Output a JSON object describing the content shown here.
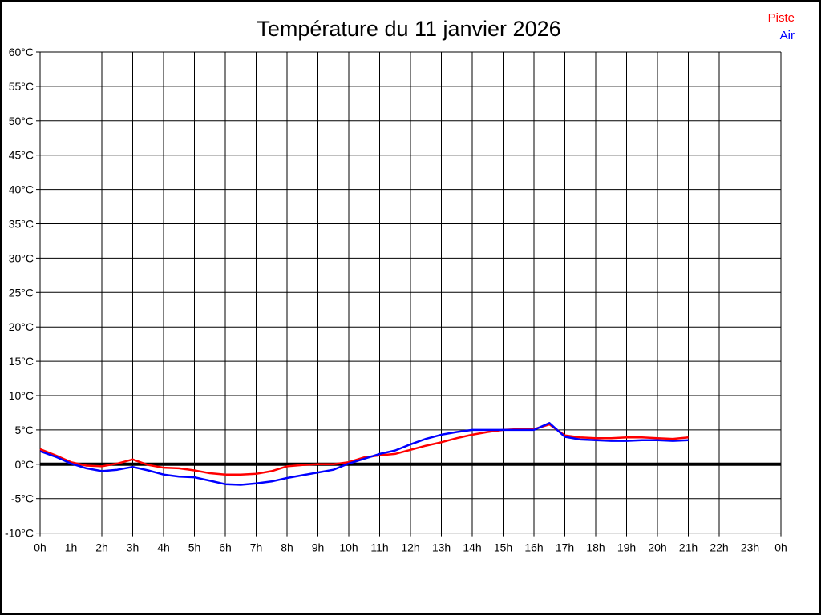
{
  "page": {
    "background": "#ffffff",
    "border_color": "#000000"
  },
  "title": "Température du 11 janvier 2026",
  "legend": {
    "position": "top-right",
    "items": [
      {
        "label": "Piste",
        "color": "#ff0000"
      },
      {
        "label": "Air",
        "color": "#0000ff"
      }
    ]
  },
  "chart_data": {
    "type": "line",
    "title": "Température du 11 janvier 2026",
    "xlabel": "",
    "ylabel": "",
    "xlim": [
      0,
      24
    ],
    "ylim": [
      -10,
      60
    ],
    "y_step": 5,
    "x_step": 1,
    "grid": true,
    "grid_color": "#000000",
    "axis_color": "#000000",
    "zero_line": {
      "value": 0,
      "color": "#000000",
      "width": 4
    },
    "y_tick_values": [
      60,
      55,
      50,
      45,
      40,
      35,
      30,
      25,
      20,
      15,
      10,
      5,
      0,
      -5,
      -10
    ],
    "y_tick_labels": [
      "60°C",
      "55°C",
      "50°C",
      "45°C",
      "40°C",
      "35°C",
      "30°C",
      "25°C",
      "20°C",
      "15°C",
      "10°C",
      "5°C",
      "0°C",
      "-5°C",
      "-10°C"
    ],
    "x_tick_values": [
      0,
      1,
      2,
      3,
      4,
      5,
      6,
      7,
      8,
      9,
      10,
      11,
      12,
      13,
      14,
      15,
      16,
      17,
      18,
      19,
      20,
      21,
      22,
      23,
      24
    ],
    "x_tick_labels": [
      "0h",
      "1h",
      "2h",
      "3h",
      "4h",
      "5h",
      "6h",
      "7h",
      "8h",
      "9h",
      "10h",
      "11h",
      "12h",
      "13h",
      "14h",
      "15h",
      "16h",
      "17h",
      "18h",
      "19h",
      "20h",
      "21h",
      "22h",
      "23h",
      "0h"
    ],
    "legend_position": "top-right",
    "x": [
      0,
      0.5,
      1,
      1.5,
      2,
      2.5,
      3,
      3.5,
      4,
      4.5,
      5,
      5.5,
      6,
      6.5,
      7,
      7.5,
      8,
      8.5,
      9,
      9.5,
      10,
      10.5,
      11,
      11.5,
      12,
      12.5,
      13,
      13.5,
      14,
      14.5,
      15,
      15.5,
      16,
      16.5,
      17,
      17.5,
      18,
      18.5,
      19,
      19.5,
      20,
      20.5,
      21
    ],
    "series": [
      {
        "name": "Piste",
        "color": "#ff0000",
        "stroke_width": 2.5,
        "values": [
          2.2,
          1.3,
          0.3,
          -0.2,
          -0.3,
          0.1,
          0.7,
          -0.1,
          -0.5,
          -0.6,
          -0.9,
          -1.3,
          -1.5,
          -1.5,
          -1.4,
          -1.0,
          -0.3,
          -0.1,
          0.0,
          0.0,
          0.3,
          1.0,
          1.3,
          1.5,
          2.1,
          2.7,
          3.2,
          3.8,
          4.3,
          4.7,
          5.0,
          5.1,
          5.1,
          5.8,
          4.2,
          3.9,
          3.8,
          3.8,
          3.9,
          3.9,
          3.8,
          3.7,
          3.9
        ]
      },
      {
        "name": "Air",
        "color": "#0000ff",
        "stroke_width": 2.5,
        "values": [
          1.9,
          1.1,
          0.1,
          -0.6,
          -1.0,
          -0.8,
          -0.4,
          -0.9,
          -1.5,
          -1.8,
          -1.9,
          -2.4,
          -2.9,
          -3.0,
          -2.8,
          -2.5,
          -2.0,
          -1.6,
          -1.2,
          -0.8,
          0.1,
          0.8,
          1.5,
          2.0,
          2.9,
          3.7,
          4.3,
          4.7,
          5.0,
          5.0,
          5.0,
          5.0,
          5.0,
          6.0,
          4.0,
          3.6,
          3.5,
          3.4,
          3.4,
          3.5,
          3.5,
          3.4,
          3.5
        ]
      }
    ]
  }
}
